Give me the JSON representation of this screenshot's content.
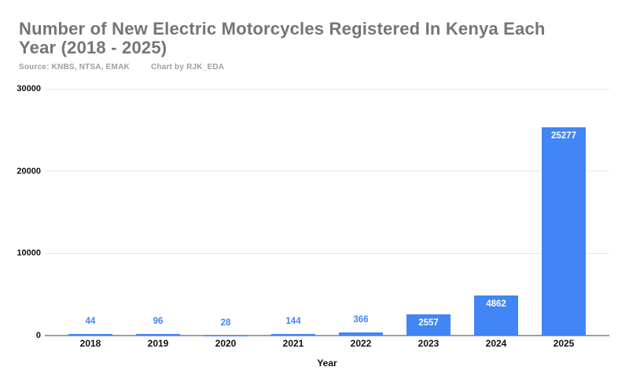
{
  "header": {
    "title": "Number of New Electric Motorcycles Registered In Kenya Each\nYear (2018 - 2025)",
    "source": "Source: KNBS, NTSA, EMAK",
    "credit": "Chart by RJK_EDA"
  },
  "chart_data": {
    "type": "bar",
    "title": "Number of New Electric Motorcycles Registered In Kenya Each Year (2018 - 2025)",
    "subtitle_source": "Source: KNBS, NTSA, EMAK",
    "subtitle_credit": "Chart by RJK_EDA",
    "categories": [
      "2018",
      "2019",
      "2020",
      "2021",
      "2022",
      "2023",
      "2024",
      "2025"
    ],
    "values": [
      44,
      96,
      28,
      144,
      366,
      2557,
      4862,
      25277
    ],
    "xlabel": "Year",
    "ylabel": "",
    "ylim": [
      0,
      30000
    ],
    "yticks": [
      0,
      10000,
      20000,
      30000
    ],
    "grid": true,
    "legend": "none",
    "bar_color": "#4285f4",
    "value_label_inside_color": "#ffffff",
    "value_label_outside_color": "#4285f4",
    "axis_line_color": "#9e9e9e",
    "gridline_color": "#e9e9e9"
  }
}
